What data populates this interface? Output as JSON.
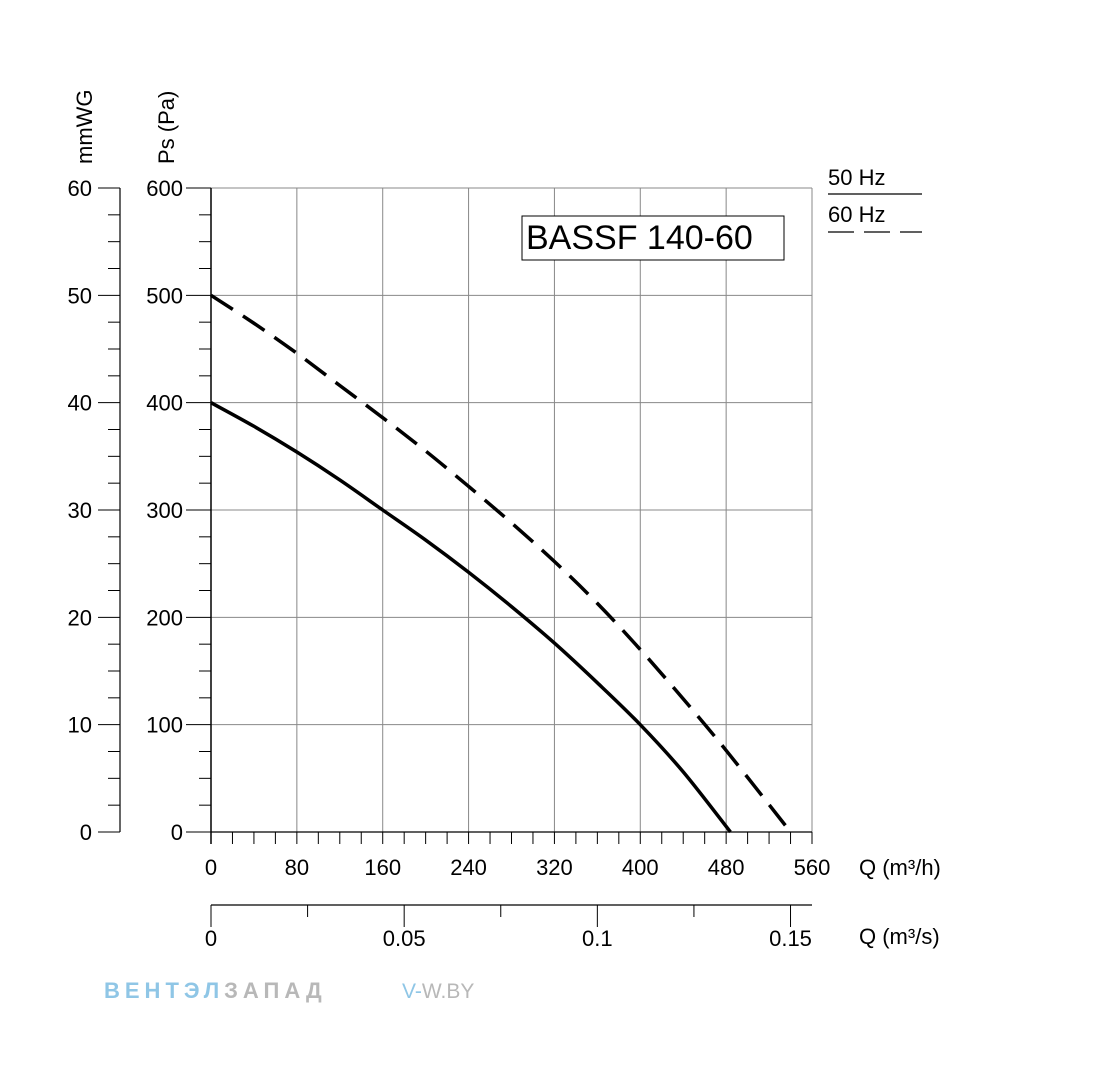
{
  "chart_data": {
    "type": "line",
    "title": "BASSF 140-60",
    "y_axis_pa": {
      "label": "Ps (Pa)",
      "min": 0,
      "max": 600,
      "ticks": [
        "0",
        "100",
        "200",
        "300",
        "400",
        "500",
        "600"
      ]
    },
    "y_axis_mmwg": {
      "label": "mmWG",
      "min": 0,
      "max": 60,
      "ticks": [
        "0",
        "10",
        "20",
        "30",
        "40",
        "50",
        "60"
      ]
    },
    "x_axis_m3h": {
      "label": "Q (m³/h)",
      "min": 0,
      "max": 560,
      "ticks": [
        "0",
        "80",
        "160",
        "240",
        "320",
        "400",
        "480",
        "560"
      ]
    },
    "x_axis_m3s": {
      "label": "Q (m³/s)",
      "min": 0,
      "max": 0.15556,
      "ticks": [
        {
          "value": 0,
          "label": "0"
        },
        {
          "value": 0.05,
          "label": "0.05"
        },
        {
          "value": 0.1,
          "label": "0.1"
        },
        {
          "value": 0.15,
          "label": "0.15"
        }
      ]
    },
    "grid": true,
    "legend_position": "top-right",
    "series": [
      {
        "name": "50 Hz",
        "style": "solid",
        "x": [
          0,
          40,
          80,
          120,
          160,
          200,
          240,
          280,
          320,
          360,
          400,
          440,
          484
        ],
        "y": [
          400,
          378,
          354,
          328,
          300,
          272,
          242,
          210,
          176,
          139,
          100,
          56,
          0
        ]
      },
      {
        "name": "60 Hz",
        "style": "dashed",
        "x": [
          0,
          40,
          80,
          120,
          160,
          200,
          240,
          280,
          320,
          360,
          400,
          440,
          480,
          540
        ],
        "y": [
          500,
          474,
          446,
          416,
          386,
          355,
          322,
          288,
          252,
          213,
          170,
          124,
          76,
          0
        ]
      }
    ]
  },
  "watermark": {
    "brand_part1": "ВЕНТЭЛ",
    "brand_part2": "ЗАПАД",
    "url_part1": "V-",
    "url_part2": "W.BY"
  },
  "colors": {
    "line": "#000000",
    "grid": "#888888",
    "wm_blue": "#8fc6e6",
    "wm_grey": "#b8b8b8"
  }
}
